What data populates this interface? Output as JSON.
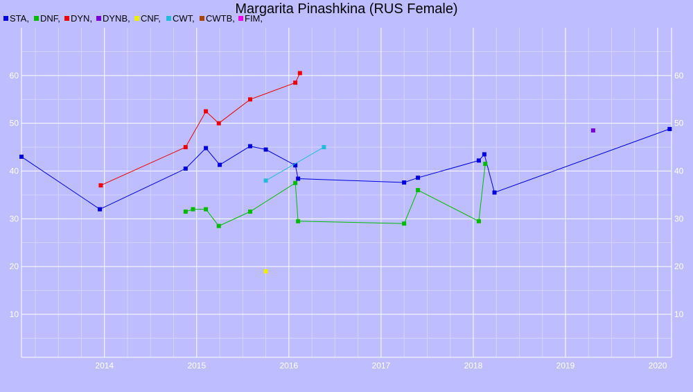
{
  "chart_data": {
    "type": "line",
    "title": "Margarita Pinashkina (RUS Female)",
    "xlabel": "",
    "ylabel": "",
    "xlim": [
      2013.1,
      2020.15
    ],
    "ylim": [
      1,
      70
    ],
    "grid": true,
    "legend_placement": "top-left",
    "x_ticks": [
      "2014",
      "2015",
      "2016",
      "2017",
      "2018",
      "2019",
      "2020"
    ],
    "y_ticks": [
      "10",
      "20",
      "30",
      "40",
      "50",
      "60"
    ],
    "legend": [
      {
        "label": "STA,",
        "color": "#0000dd"
      },
      {
        "label": "DNF,",
        "color": "#00bb00"
      },
      {
        "label": "DYN,",
        "color": "#ee0000"
      },
      {
        "label": "DYNB,",
        "color": "#7700dd"
      },
      {
        "label": "CNF,",
        "color": "#eeee00"
      },
      {
        "label": "CWT,",
        "color": "#22bbdd"
      },
      {
        "label": "CWTB,",
        "color": "#aa4400"
      },
      {
        "label": "FIM,",
        "color": "#ee00ee"
      }
    ],
    "series": [
      {
        "color": "#0000dd",
        "points": [
          [
            2013.1,
            43
          ],
          [
            2013.95,
            32
          ],
          [
            2014.88,
            40.5
          ],
          [
            2015.1,
            44.8
          ],
          [
            2015.25,
            41.3
          ],
          [
            2015.58,
            45.2
          ],
          [
            2015.75,
            44.5
          ],
          [
            2016.07,
            41.2
          ],
          [
            2016.1,
            38.4
          ],
          [
            2017.25,
            37.6
          ],
          [
            2017.4,
            38.6
          ],
          [
            2018.06,
            42.2
          ],
          [
            2018.12,
            43.5
          ],
          [
            2018.23,
            35.5
          ],
          [
            2020.13,
            48.8
          ]
        ]
      },
      {
        "color": "#00bb00",
        "points": [
          [
            2014.88,
            31.5
          ],
          [
            2014.96,
            32
          ],
          [
            2015.1,
            32
          ],
          [
            2015.24,
            28.5
          ],
          [
            2015.58,
            31.5
          ],
          [
            2016.07,
            37.5
          ],
          [
            2016.1,
            29.5
          ],
          [
            2017.25,
            29
          ],
          [
            2017.4,
            36
          ],
          [
            2018.06,
            29.5
          ],
          [
            2018.13,
            41.5
          ]
        ]
      },
      {
        "color": "#ee0000",
        "points": [
          [
            2013.96,
            37
          ],
          [
            2014.88,
            45
          ],
          [
            2015.1,
            52.5
          ],
          [
            2015.24,
            50
          ],
          [
            2015.58,
            55
          ],
          [
            2016.07,
            58.5
          ],
          [
            2016.12,
            60.5
          ]
        ]
      },
      {
        "color": "#7700dd",
        "points": [
          [
            2019.3,
            48.5
          ]
        ]
      },
      {
        "color": "#eeee00",
        "points": [
          [
            2015.75,
            19
          ]
        ]
      },
      {
        "color": "#22bbdd",
        "points": [
          [
            2015.75,
            38
          ],
          [
            2016.38,
            45
          ]
        ]
      }
    ]
  }
}
